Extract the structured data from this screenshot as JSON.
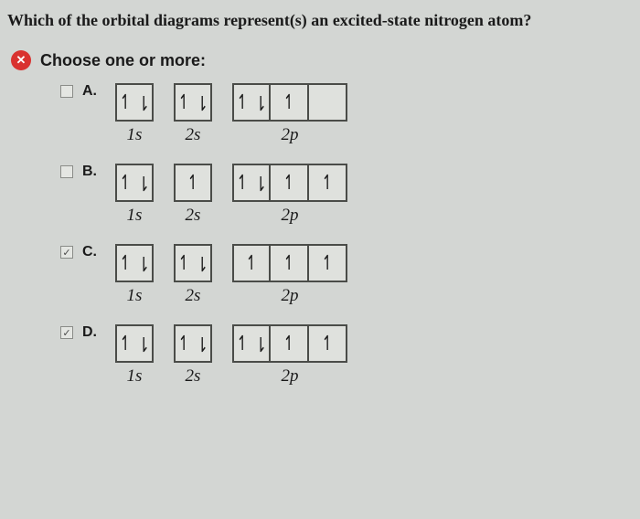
{
  "question": "Which of the orbital diagrams represent(s) an excited-state nitrogen atom?",
  "badge": "✕",
  "instruction": "Choose one or more:",
  "labels": {
    "s1": "1s",
    "s2": "2s",
    "p2": "2p"
  },
  "options": [
    {
      "letter": "A.",
      "checked": false,
      "orbitals": [
        {
          "label_key": "s1",
          "cells": [
            [
              "up",
              "dn"
            ]
          ]
        },
        {
          "label_key": "s2",
          "cells": [
            [
              "up",
              "dn"
            ]
          ]
        },
        {
          "label_key": "p2",
          "cells": [
            [
              "up",
              "dn"
            ],
            [
              "up"
            ],
            []
          ]
        }
      ]
    },
    {
      "letter": "B.",
      "checked": false,
      "orbitals": [
        {
          "label_key": "s1",
          "cells": [
            [
              "up",
              "dn"
            ]
          ]
        },
        {
          "label_key": "s2",
          "cells": [
            [
              "up"
            ]
          ]
        },
        {
          "label_key": "p2",
          "cells": [
            [
              "up",
              "dn"
            ],
            [
              "up"
            ],
            [
              "up"
            ]
          ]
        }
      ]
    },
    {
      "letter": "C.",
      "checked": true,
      "orbitals": [
        {
          "label_key": "s1",
          "cells": [
            [
              "up",
              "dn"
            ]
          ]
        },
        {
          "label_key": "s2",
          "cells": [
            [
              "up",
              "dn"
            ]
          ]
        },
        {
          "label_key": "p2",
          "cells": [
            [
              "up"
            ],
            [
              "up"
            ],
            [
              "up"
            ]
          ]
        }
      ]
    },
    {
      "letter": "D.",
      "checked": true,
      "orbitals": [
        {
          "label_key": "s1",
          "cells": [
            [
              "up",
              "dn"
            ]
          ]
        },
        {
          "label_key": "s2",
          "cells": [
            [
              "up",
              "dn"
            ]
          ]
        },
        {
          "label_key": "p2",
          "cells": [
            [
              "up",
              "dn"
            ],
            [
              "up"
            ],
            [
              "up"
            ]
          ]
        }
      ]
    }
  ]
}
